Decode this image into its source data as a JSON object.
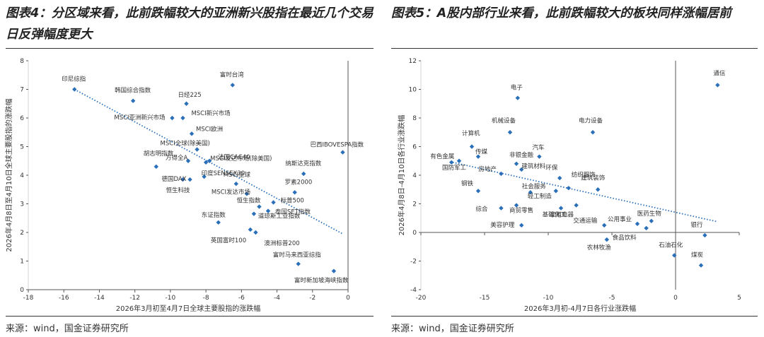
{
  "left": {
    "title": "图表4：分区域来看，此前跌幅较大的亚洲新兴股指在最近几个交易日反弹幅度更大",
    "source": "来源：wind，国金证券研究所"
  },
  "right": {
    "title": "图表5：A股内部行业来看，此前跌幅较大的板块同样涨幅居前",
    "source": "来源：wind，国金证券研究所"
  },
  "colors": {
    "marker": "#2a6fb8",
    "trend": "#2a6fb8",
    "axis": "#555555"
  },
  "chart_data": [
    {
      "type": "scatter",
      "title": "",
      "xlabel": "2026年3月初至4月7日全球主要股指的涨跌幅",
      "ylabel": "2026年4月8日至4月10日全球主要股指的涨跌幅",
      "xlim": [
        -18,
        0
      ],
      "ylim": [
        0,
        8
      ],
      "xticks": [
        -18,
        -16,
        -14,
        -12,
        -10,
        -8,
        -6,
        -4,
        -2,
        0
      ],
      "yticks": [
        0,
        1,
        2,
        3,
        4,
        5,
        6,
        7,
        8
      ],
      "trendline": {
        "x": [
          -15.4,
          -0.3
        ],
        "y": [
          7.0,
          1.95
        ],
        "style": "dotted"
      },
      "points": [
        {
          "label": "印尼综指",
          "x": -15.4,
          "y": 7.0
        },
        {
          "label": "韩国综合指数",
          "x": -12.1,
          "y": 6.6
        },
        {
          "label": "日经225",
          "x": -9.1,
          "y": 6.5
        },
        {
          "label": "富时台湾",
          "x": -6.5,
          "y": 7.15
        },
        {
          "label": "MSCI亚洲新兴市场",
          "x": -9.9,
          "y": 6.0
        },
        {
          "label": "MSCI新兴市场",
          "x": -9.3,
          "y": 6.0
        },
        {
          "label": "MSCI欧洲",
          "x": -8.8,
          "y": 5.45
        },
        {
          "label": "巴西IBOVESPA指数",
          "x": -0.3,
          "y": 4.8
        },
        {
          "label": "MSCI全球(除美国)",
          "x": -8.5,
          "y": 4.9
        },
        {
          "label": "MSCI发达市场(除美国)",
          "x": -8.0,
          "y": 4.45
        },
        {
          "label": "万得全A",
          "x": -9.0,
          "y": 4.5
        },
        {
          "label": "法国CAC40",
          "x": -7.8,
          "y": 4.5
        },
        {
          "label": "胡志明指数",
          "x": -10.8,
          "y": 4.3
        },
        {
          "label": "纳斯达克指数",
          "x": -2.5,
          "y": 4.05
        },
        {
          "label": "德国DAX",
          "x": -9.3,
          "y": 3.85
        },
        {
          "label": "恒生科技",
          "x": -8.9,
          "y": 3.85
        },
        {
          "label": "印度SENSEX30",
          "x": -8.1,
          "y": 3.95
        },
        {
          "label": "MSCI全球",
          "x": -6.3,
          "y": 3.7
        },
        {
          "label": "罗素2000",
          "x": -3.0,
          "y": 3.4
        },
        {
          "label": "MSCI发达市场",
          "x": -5.7,
          "y": 3.35
        },
        {
          "label": "标普500",
          "x": -4.2,
          "y": 3.05
        },
        {
          "label": "恒生指数",
          "x": -5.0,
          "y": 2.9
        },
        {
          "label": "泰国SET指数",
          "x": -4.5,
          "y": 2.75
        },
        {
          "label": "东证指数",
          "x": -7.3,
          "y": 2.35
        },
        {
          "label": "道琼斯工业指数",
          "x": -5.3,
          "y": 2.65
        },
        {
          "label": "英国富时100",
          "x": -5.5,
          "y": 2.1
        },
        {
          "label": "澳洲标普200",
          "x": -5.2,
          "y": 2.0
        },
        {
          "label": "富时马来西亚综指",
          "x": -2.8,
          "y": 0.9
        },
        {
          "label": "富时新加坡海峡指数",
          "x": -0.8,
          "y": 0.65
        }
      ]
    },
    {
      "type": "scatter",
      "title": "",
      "xlabel": "2026年3月初-4月7日各行业涨跌幅",
      "ylabel": "2026年4月8日-4月10日各行业涨跌幅",
      "xlim": [
        -20,
        5
      ],
      "ylim": [
        -4,
        12
      ],
      "xticks": [
        -20,
        -15,
        -10,
        -5,
        0,
        5
      ],
      "yticks": [
        -4,
        -2,
        0,
        2,
        4,
        6,
        8,
        10,
        12
      ],
      "trendline": {
        "x": [
          -17.5,
          3.3
        ],
        "y": [
          4.9,
          0.75
        ],
        "style": "dotted"
      },
      "points": [
        {
          "label": "通信",
          "x": 3.3,
          "y": 10.3
        },
        {
          "label": "电子",
          "x": -12.4,
          "y": 9.4
        },
        {
          "label": "机械设备",
          "x": -13.0,
          "y": 7.0
        },
        {
          "label": "电力设备",
          "x": -6.5,
          "y": 7.0
        },
        {
          "label": "计算机",
          "x": -16.0,
          "y": 6.0
        },
        {
          "label": "有色金属",
          "x": -17.6,
          "y": 4.9
        },
        {
          "label": "传媒",
          "x": -15.5,
          "y": 5.3
        },
        {
          "label": "国防军工",
          "x": -17.0,
          "y": 5.0
        },
        {
          "label": "非银金融",
          "x": -12.5,
          "y": 4.8
        },
        {
          "label": "汽车",
          "x": -10.7,
          "y": 5.3
        },
        {
          "label": "建筑材料",
          "x": -12.1,
          "y": 4.4
        },
        {
          "label": "环保",
          "x": -9.1,
          "y": 3.8
        },
        {
          "label": "纺织服饰",
          "x": -8.4,
          "y": 3.1
        },
        {
          "label": "房地产",
          "x": -13.7,
          "y": 4.1
        },
        {
          "label": "钢铁",
          "x": -15.5,
          "y": 2.9
        },
        {
          "label": "建筑装饰",
          "x": -6.1,
          "y": 3.0
        },
        {
          "label": "社会服务",
          "x": -11.4,
          "y": 2.8
        },
        {
          "label": "轻工制造",
          "x": -9.4,
          "y": 2.9
        },
        {
          "label": "综合",
          "x": -13.7,
          "y": 1.7
        },
        {
          "label": "商贸零售",
          "x": -12.5,
          "y": 1.9
        },
        {
          "label": "基础化工",
          "x": -7.8,
          "y": 1.9
        },
        {
          "label": "家用电器",
          "x": -9.0,
          "y": 1.7
        },
        {
          "label": "医药生物",
          "x": -1.9,
          "y": 0.8
        },
        {
          "label": "公用事业",
          "x": -3.0,
          "y": 0.6
        },
        {
          "label": "美容护理",
          "x": -12.1,
          "y": 0.5
        },
        {
          "label": "交通运输",
          "x": -5.6,
          "y": 0.5
        },
        {
          "label": "食品饮料",
          "x": -2.3,
          "y": 0.3
        },
        {
          "label": "银行",
          "x": 2.3,
          "y": -0.2
        },
        {
          "label": "农林牧渔",
          "x": -5.4,
          "y": -0.5
        },
        {
          "label": "石油石化",
          "x": -0.1,
          "y": -1.6
        },
        {
          "label": "煤炭",
          "x": 2.0,
          "y": -2.3
        }
      ]
    }
  ]
}
